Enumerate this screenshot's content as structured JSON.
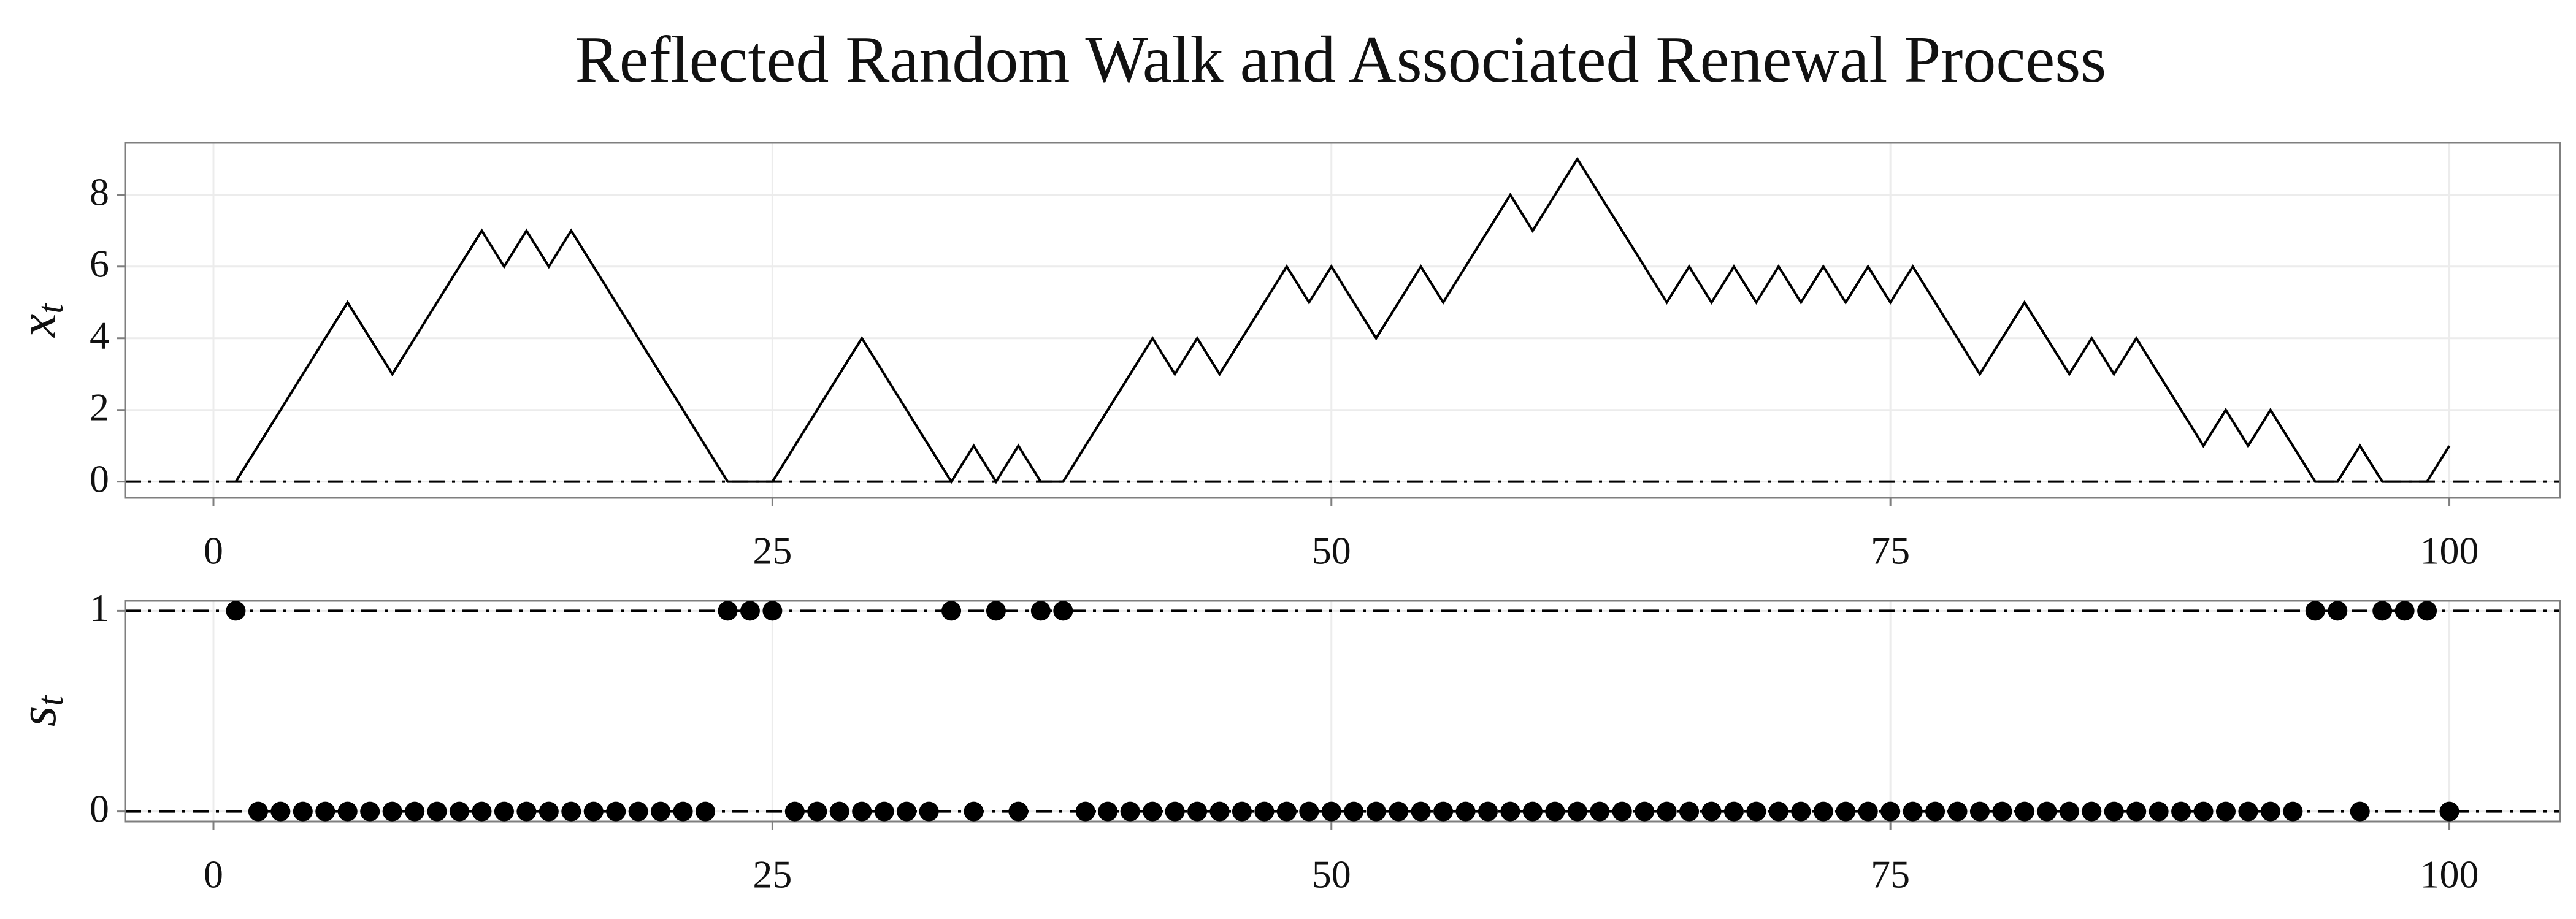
{
  "chart_data": [
    {
      "type": "line",
      "title": "Reflected Random Walk and Associated Renewal Process",
      "ylabel": {
        "base": "x",
        "sub": "t"
      },
      "x": [
        1,
        2,
        3,
        4,
        5,
        6,
        7,
        8,
        9,
        10,
        11,
        12,
        13,
        14,
        15,
        16,
        17,
        18,
        19,
        20,
        21,
        22,
        23,
        24,
        25,
        26,
        27,
        28,
        29,
        30,
        31,
        32,
        33,
        34,
        35,
        36,
        37,
        38,
        39,
        40,
        41,
        42,
        43,
        44,
        45,
        46,
        47,
        48,
        49,
        50,
        51,
        52,
        53,
        54,
        55,
        56,
        57,
        58,
        59,
        60,
        61,
        62,
        63,
        64,
        65,
        66,
        67,
        68,
        69,
        70,
        71,
        72,
        73,
        74,
        75,
        76,
        77,
        78,
        79,
        80,
        81,
        82,
        83,
        84,
        85,
        86,
        87,
        88,
        89,
        90,
        91,
        92,
        93,
        94,
        95,
        96,
        97,
        98,
        99,
        100
      ],
      "series": [
        {
          "color": "#000000",
          "values": [
            0,
            1,
            2,
            3,
            4,
            5,
            4,
            3,
            4,
            5,
            6,
            7,
            6,
            7,
            6,
            7,
            6,
            5,
            4,
            3,
            2,
            1,
            0,
            0,
            0,
            1,
            2,
            3,
            4,
            3,
            2,
            1,
            0,
            1,
            0,
            1,
            0,
            0,
            1,
            2,
            3,
            4,
            3,
            4,
            3,
            4,
            5,
            6,
            5,
            6,
            5,
            4,
            5,
            6,
            5,
            6,
            7,
            8,
            7,
            8,
            9,
            8,
            7,
            6,
            5,
            6,
            5,
            6,
            5,
            6,
            5,
            6,
            5,
            6,
            5,
            6,
            5,
            4,
            3,
            4,
            5,
            4,
            3,
            4,
            3,
            4,
            3,
            2,
            1,
            2,
            1,
            2,
            1,
            0,
            0,
            1,
            0,
            0,
            0,
            1
          ]
        }
      ],
      "xlim": [
        -3.95,
        104.95
      ],
      "ylim": [
        -0.45,
        9.45
      ],
      "xticks": [
        0,
        25,
        50,
        75,
        100
      ],
      "yticks": [
        0,
        2,
        4,
        6,
        8
      ],
      "hlines": [
        0
      ],
      "grid": true
    },
    {
      "type": "scatter",
      "ylabel": {
        "base": "s",
        "sub": "t"
      },
      "x": [
        1,
        2,
        3,
        4,
        5,
        6,
        7,
        8,
        9,
        10,
        11,
        12,
        13,
        14,
        15,
        16,
        17,
        18,
        19,
        20,
        21,
        22,
        23,
        24,
        25,
        26,
        27,
        28,
        29,
        30,
        31,
        32,
        33,
        34,
        35,
        36,
        37,
        38,
        39,
        40,
        41,
        42,
        43,
        44,
        45,
        46,
        47,
        48,
        49,
        50,
        51,
        52,
        53,
        54,
        55,
        56,
        57,
        58,
        59,
        60,
        61,
        62,
        63,
        64,
        65,
        66,
        67,
        68,
        69,
        70,
        71,
        72,
        73,
        74,
        75,
        76,
        77,
        78,
        79,
        80,
        81,
        82,
        83,
        84,
        85,
        86,
        87,
        88,
        89,
        90,
        91,
        92,
        93,
        94,
        95,
        96,
        97,
        98,
        99,
        100
      ],
      "series": [
        {
          "color": "#000000",
          "values": [
            1,
            0,
            0,
            0,
            0,
            0,
            0,
            0,
            0,
            0,
            0,
            0,
            0,
            0,
            0,
            0,
            0,
            0,
            0,
            0,
            0,
            0,
            1,
            1,
            1,
            0,
            0,
            0,
            0,
            0,
            0,
            0,
            1,
            0,
            1,
            0,
            1,
            1,
            0,
            0,
            0,
            0,
            0,
            0,
            0,
            0,
            0,
            0,
            0,
            0,
            0,
            0,
            0,
            0,
            0,
            0,
            0,
            0,
            0,
            0,
            0,
            0,
            0,
            0,
            0,
            0,
            0,
            0,
            0,
            0,
            0,
            0,
            0,
            0,
            0,
            0,
            0,
            0,
            0,
            0,
            0,
            0,
            0,
            0,
            0,
            0,
            0,
            0,
            0,
            0,
            0,
            0,
            0,
            1,
            1,
            0,
            1,
            1,
            1,
            0
          ]
        }
      ],
      "xlim": [
        -3.95,
        104.95
      ],
      "ylim": [
        -0.05,
        1.05
      ],
      "xticks": [
        0,
        25,
        50,
        75,
        100
      ],
      "yticks": [
        0,
        1
      ],
      "hlines": [
        0,
        1
      ],
      "grid": true
    }
  ]
}
